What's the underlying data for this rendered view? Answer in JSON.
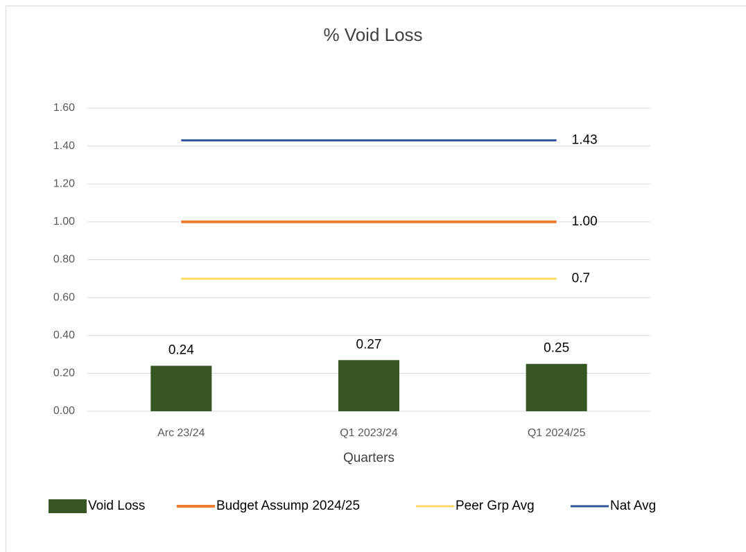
{
  "chart_data": {
    "type": "bar_line",
    "title": "% Void Loss",
    "x_label": "Quarters",
    "categories": [
      "Arc 23/24",
      "Q1 2023/24",
      "Q1 2024/25"
    ],
    "series": [
      {
        "name": "Void Loss",
        "type": "bar",
        "color": "#375623",
        "values": [
          0.24,
          0.27,
          0.25
        ]
      },
      {
        "name": "Budget Assump 2024/25",
        "type": "line",
        "color": "#ed7d31",
        "values": [
          1,
          1,
          1
        ],
        "value_labels": [
          null,
          null,
          "1.00"
        ]
      },
      {
        "name": "Peer Grp Avg",
        "type": "line",
        "color": "#ffd966",
        "values": [
          0.7,
          0.7,
          0.7
        ],
        "value_labels": [
          null,
          null,
          "0.7"
        ]
      },
      {
        "name": "Nat Avg",
        "type": "line",
        "color": "#2f5597",
        "values": [
          1.43,
          1.43,
          1.43
        ],
        "value_labels": [
          null,
          null,
          "1.43"
        ]
      }
    ],
    "ylim": [
      0,
      1.6
    ],
    "yticks": [
      {
        "value": 0,
        "label": "0.00"
      },
      {
        "value": 0.2,
        "label": "0.20"
      },
      {
        "value": 0.4,
        "label": "0.40"
      },
      {
        "value": 0.6,
        "label": "0.60"
      },
      {
        "value": 0.8,
        "label": "0.80"
      },
      {
        "value": 1,
        "label": "1.00"
      },
      {
        "value": 1.2,
        "label": "1.20"
      },
      {
        "value": 1.4,
        "label": "1.40"
      },
      {
        "value": 1.6,
        "label": "1.60"
      }
    ],
    "grid": true,
    "legend": "bottom"
  }
}
